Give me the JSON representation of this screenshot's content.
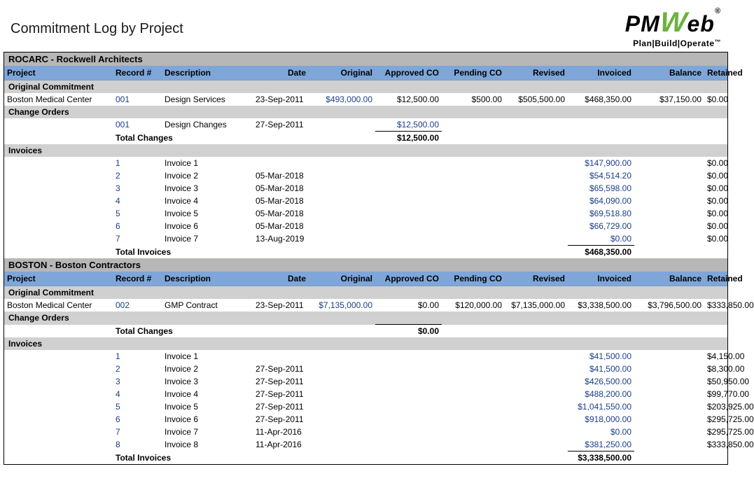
{
  "title": "Commitment Log by Project",
  "logo": {
    "p1": "PM",
    "w": "W",
    "p2": "eb",
    "reg": "®",
    "tagline": "Plan|Build|Operate",
    "tm": "™"
  },
  "columns": [
    "Project",
    "Record #",
    "Description",
    "Date",
    "Original",
    "Approved CO",
    "Pending CO",
    "Revised",
    "Invoiced",
    "Balance",
    "Retained"
  ],
  "section_labels": {
    "orig": "Original Commitment",
    "co": "Change Orders",
    "inv": "Invoices",
    "tot_changes": "Total Changes",
    "tot_inv": "Total Invoices"
  },
  "groups": [
    {
      "header": "ROCARC - Rockwell Architects",
      "commitment": {
        "project": "Boston Medical Center",
        "record": "001",
        "desc": "Design Services",
        "date": "23-Sep-2011",
        "original": "$493,000.00",
        "approved_co": "$12,500.00",
        "pending_co": "$500.00",
        "revised": "$505,500.00",
        "invoiced": "$468,350.00",
        "balance": "$37,150.00",
        "retained": "$0.00"
      },
      "change_orders": [
        {
          "record": "001",
          "desc": "Design Changes",
          "date": "27-Sep-2011",
          "approved_co": "$12,500.00"
        }
      ],
      "total_changes": {
        "approved_co": "$12,500.00"
      },
      "invoices": [
        {
          "record": "1",
          "desc": "Invoice 1",
          "date": "",
          "invoiced": "$147,900.00",
          "retained": "$0.00"
        },
        {
          "record": "2",
          "desc": "Invoice 2",
          "date": "05-Mar-2018",
          "invoiced": "$54,514.20",
          "retained": "$0.00"
        },
        {
          "record": "3",
          "desc": "Invoice 3",
          "date": "05-Mar-2018",
          "invoiced": "$65,598.00",
          "retained": "$0.00"
        },
        {
          "record": "4",
          "desc": "Invoice 4",
          "date": "05-Mar-2018",
          "invoiced": "$64,090.00",
          "retained": "$0.00"
        },
        {
          "record": "5",
          "desc": "Invoice 5",
          "date": "05-Mar-2018",
          "invoiced": "$69,518.80",
          "retained": "$0.00"
        },
        {
          "record": "6",
          "desc": "Invoice 6",
          "date": "05-Mar-2018",
          "invoiced": "$66,729.00",
          "retained": "$0.00"
        },
        {
          "record": "7",
          "desc": "Invoice 7",
          "date": "13-Aug-2019",
          "invoiced": "$0.00",
          "retained": "$0.00"
        }
      ],
      "total_invoices": {
        "invoiced": "$468,350.00"
      }
    },
    {
      "header": "BOSTON - Boston Contractors",
      "commitment": {
        "project": "Boston Medical Center",
        "record": "002",
        "desc": "GMP Contract",
        "date": "23-Sep-2011",
        "original": "$7,135,000.00",
        "approved_co": "$0.00",
        "pending_co": "$120,000.00",
        "revised": "$7,135,000.00",
        "invoiced": "$3,338,500.00",
        "balance": "$3,796,500.00",
        "retained": "$333,850.00"
      },
      "change_orders": [],
      "total_changes": {
        "approved_co": "$0.00"
      },
      "invoices": [
        {
          "record": "1",
          "desc": "Invoice 1",
          "date": "",
          "invoiced": "$41,500.00",
          "retained": "$4,150.00"
        },
        {
          "record": "2",
          "desc": "Invoice 2",
          "date": "27-Sep-2011",
          "invoiced": "$41,500.00",
          "retained": "$8,300.00"
        },
        {
          "record": "3",
          "desc": "Invoice 3",
          "date": "27-Sep-2011",
          "invoiced": "$426,500.00",
          "retained": "$50,950.00"
        },
        {
          "record": "4",
          "desc": "Invoice 4",
          "date": "27-Sep-2011",
          "invoiced": "$488,200.00",
          "retained": "$99,770.00"
        },
        {
          "record": "5",
          "desc": "Invoice 5",
          "date": "27-Sep-2011",
          "invoiced": "$1,041,550.00",
          "retained": "$203,925.00"
        },
        {
          "record": "6",
          "desc": "Invoice 6",
          "date": "27-Sep-2011",
          "invoiced": "$918,000.00",
          "retained": "$295,725.00"
        },
        {
          "record": "7",
          "desc": "Invoice 7",
          "date": "11-Apr-2016",
          "invoiced": "$0.00",
          "retained": "$295,725.00"
        },
        {
          "record": "8",
          "desc": "Invoice 8",
          "date": "11-Apr-2016",
          "invoiced": "$381,250.00",
          "retained": "$333,850.00"
        }
      ],
      "total_invoices": {
        "invoiced": "$3,338,500.00"
      }
    }
  ],
  "link_color": "#1a3e8b"
}
